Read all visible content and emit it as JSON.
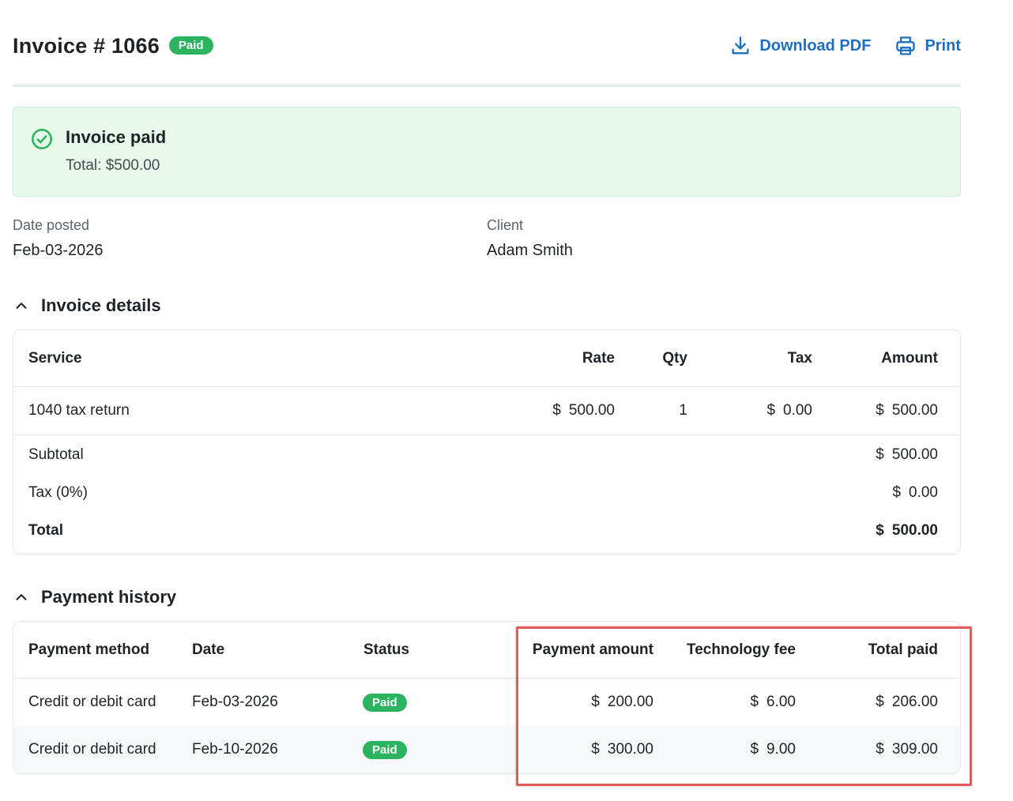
{
  "header": {
    "title": "Invoice # 1066",
    "status_badge": "Paid",
    "download_label": "Download PDF",
    "print_label": "Print"
  },
  "banner": {
    "title": "Invoice paid",
    "total": "Total: $500.00"
  },
  "meta": {
    "date_posted_label": "Date posted",
    "date_posted_value": "Feb-03-2026",
    "client_label": "Client",
    "client_value": "Adam Smith"
  },
  "invoice_details": {
    "heading": "Invoice details",
    "columns": [
      "Service",
      "Rate",
      "Qty",
      "Tax",
      "Amount"
    ],
    "rows": [
      {
        "service": "1040 tax return",
        "rate_symbol": "$",
        "rate": "500.00",
        "qty": "1",
        "tax_symbol": "$",
        "tax": "0.00",
        "amount_symbol": "$",
        "amount": "500.00"
      }
    ],
    "summary": [
      {
        "label": "Subtotal",
        "symbol": "$",
        "value": "500.00"
      },
      {
        "label": "Tax (0%)",
        "symbol": "$",
        "value": "0.00"
      },
      {
        "label": "Total",
        "symbol": "$",
        "value": "500.00"
      }
    ]
  },
  "payment_history": {
    "heading": "Payment history",
    "columns": [
      "Payment method",
      "Date",
      "Status",
      "Payment amount",
      "Technology fee",
      "Total paid"
    ],
    "rows": [
      {
        "method": "Credit or debit card",
        "date": "Feb-03-2026",
        "status": "Paid",
        "amount_symbol": "$",
        "amount": "200.00",
        "fee_symbol": "$",
        "fee": "6.00",
        "total_symbol": "$",
        "total": "206.00"
      },
      {
        "method": "Credit or debit card",
        "date": "Feb-10-2026",
        "status": "Paid",
        "amount_symbol": "$",
        "amount": "300.00",
        "fee_symbol": "$",
        "fee": "9.00",
        "total_symbol": "$",
        "total": "309.00"
      }
    ]
  },
  "colors": {
    "accent": "#1d6fc2",
    "paid_badge": "#2bb35f",
    "banner_bg": "#e6f9ea",
    "highlight_border": "#e25c5c"
  },
  "icons": {
    "download": "download-icon",
    "print": "printer-icon",
    "check": "check-circle-icon",
    "collapse": "chevron-up-icon"
  }
}
